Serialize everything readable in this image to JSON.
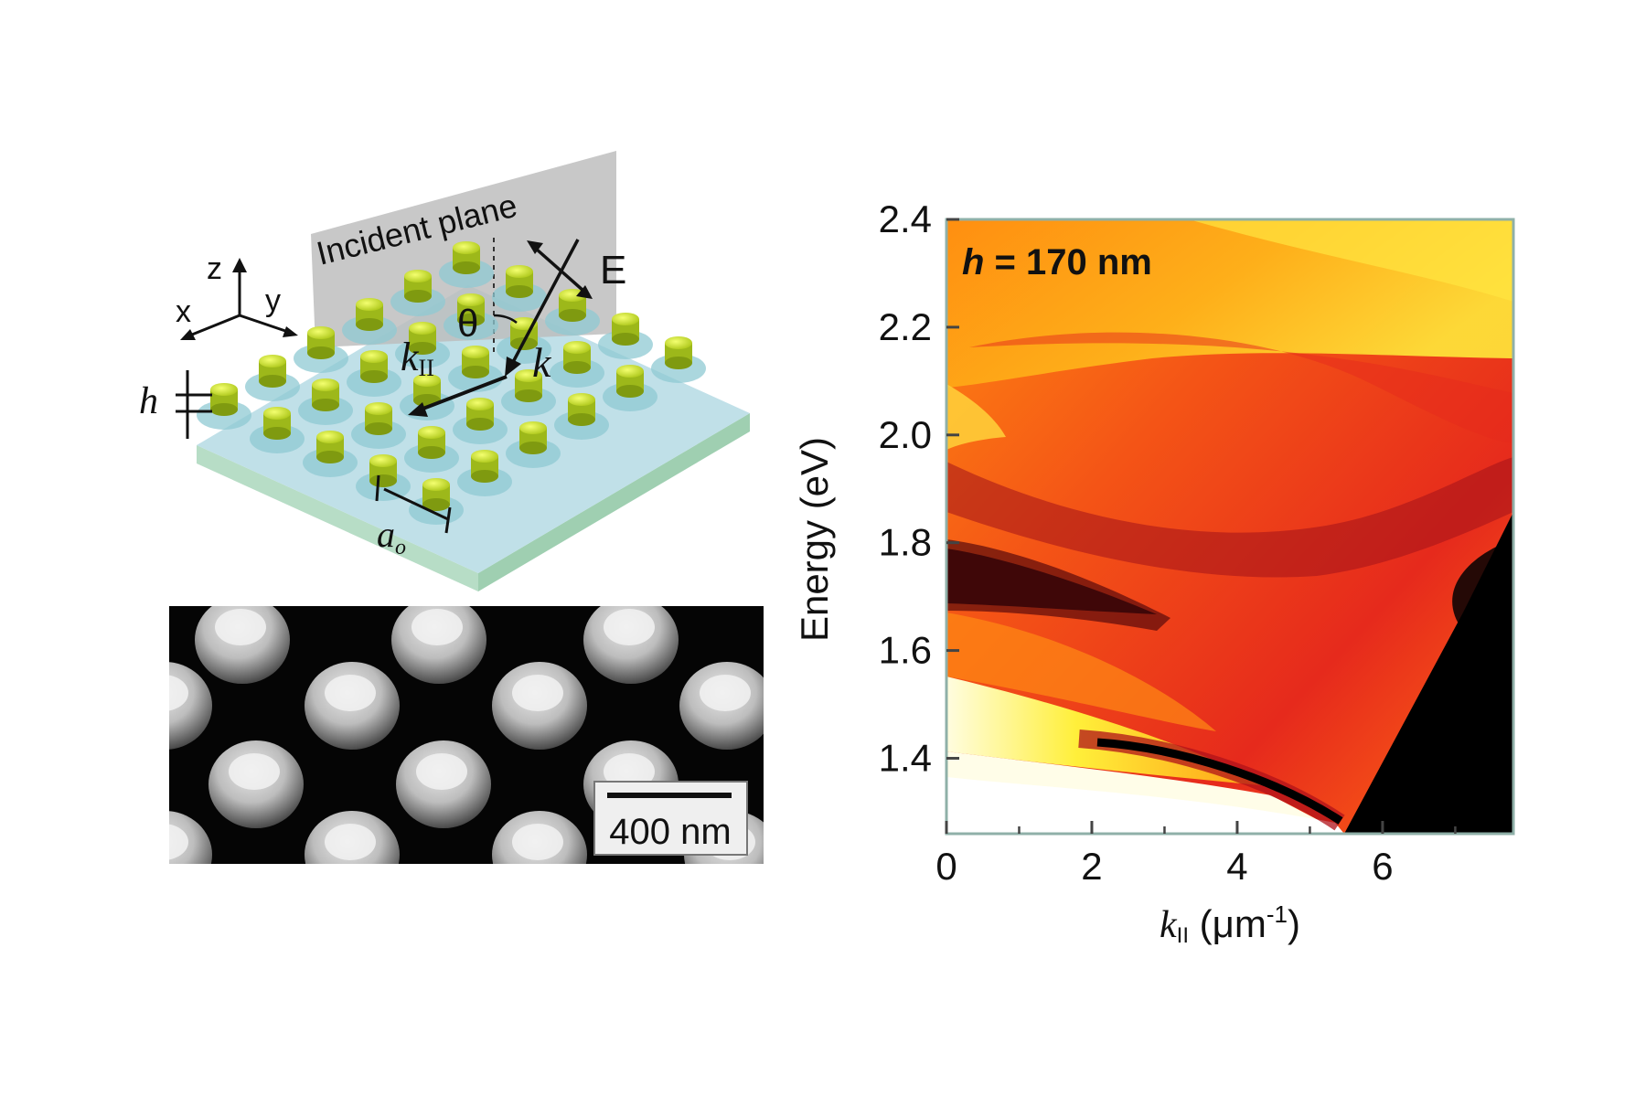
{
  "schematic": {
    "incident_plane_label": "Incident plane",
    "axes": {
      "z": "z",
      "x": "x",
      "y": "y"
    },
    "field_label": "E",
    "angle_label": "θ",
    "wavevector_label": "k",
    "kpar_label": "k",
    "kpar_sub": "II",
    "height_label": "h",
    "period_label": "a",
    "period_sub": "o"
  },
  "sem": {
    "scale_bar_label": "400 nm"
  },
  "chart_data": {
    "type": "heatmap",
    "annotation": {
      "italic": "h",
      "rest": " = 170 nm"
    },
    "ylabel": "Energy (eV)",
    "xlabel_main": "k",
    "xlabel_sub": "II",
    "xlabel_unit": " (μm",
    "xlabel_exp": "-1",
    "xlabel_close": ")",
    "xlim": [
      0,
      7.8
    ],
    "ylim": [
      1.26,
      2.4
    ],
    "x_ticks": [
      0,
      2,
      4,
      6
    ],
    "x_minor_ticks": [
      1,
      3,
      5,
      7
    ],
    "y_ticks": [
      1.4,
      1.6,
      1.8,
      2.0,
      2.2,
      2.4
    ],
    "y_tick_labels": [
      "1.4",
      "1.6",
      "1.8",
      "2.0",
      "2.2",
      "2.4"
    ],
    "colors": {
      "low": "#000000",
      "mid": "#e62a1c",
      "high": "#ffffff",
      "accent": "#ff9a10"
    }
  }
}
